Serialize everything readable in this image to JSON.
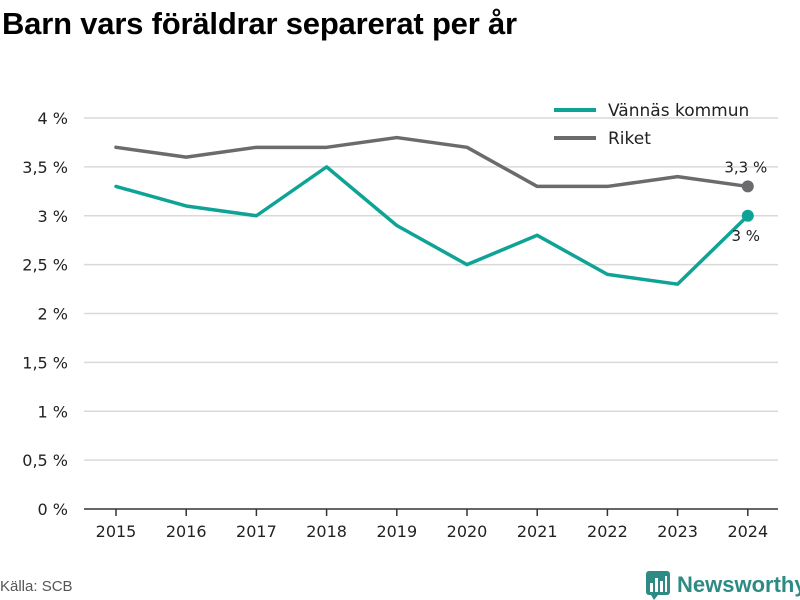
{
  "page": {
    "title": "Barn vars föräldrar separerat per år",
    "source": "Källa: SCB",
    "brand": "Newsworthy"
  },
  "colors": {
    "vannas": "#0fa396",
    "riket": "#6b6b6d",
    "grid": "#d9d9d9",
    "axis": "#333333",
    "brand": "#2e8b84"
  },
  "icons": {
    "brand_logo": "bar-chart-icon"
  },
  "chart_data": {
    "type": "line",
    "x": [
      "2015",
      "2016",
      "2017",
      "2018",
      "2019",
      "2020",
      "2021",
      "2022",
      "2023",
      "2024"
    ],
    "ylim": [
      0,
      4
    ],
    "yticks": [
      0,
      0.5,
      1,
      1.5,
      2,
      2.5,
      3,
      3.5,
      4
    ],
    "ytick_labels": [
      "0 %",
      "0,5 %",
      "1 %",
      "1,5 %",
      "2 %",
      "2,5 %",
      "3 %",
      "3,5 %",
      "4 %"
    ],
    "grid": true,
    "legend_position": "top-right",
    "series": [
      {
        "name": "Vännäs kommun",
        "color": "#0fa396",
        "values": [
          3.3,
          3.1,
          3.0,
          3.5,
          2.9,
          2.5,
          2.8,
          2.4,
          2.3,
          3.0
        ],
        "end_label": "3 %"
      },
      {
        "name": "Riket",
        "color": "#6b6b6d",
        "values": [
          3.7,
          3.6,
          3.7,
          3.7,
          3.8,
          3.7,
          3.3,
          3.3,
          3.4,
          3.3
        ],
        "end_label": "3,3 %"
      }
    ]
  }
}
